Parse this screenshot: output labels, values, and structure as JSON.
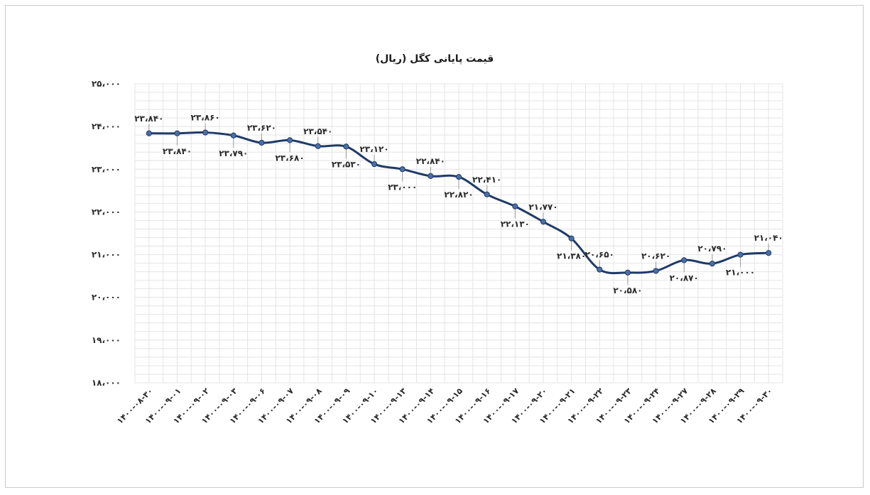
{
  "chart_data": {
    "type": "line",
    "title": "قیمت پایانی کگل (ریال)",
    "xlabel": "",
    "ylabel": "",
    "ylim": [
      18000,
      25000
    ],
    "yticks": [
      {
        "value": 25000,
        "label": "۲۵،۰۰۰"
      },
      {
        "value": 24000,
        "label": "۲۴،۰۰۰"
      },
      {
        "value": 23000,
        "label": "۲۳،۰۰۰"
      },
      {
        "value": 22000,
        "label": "۲۲،۰۰۰"
      },
      {
        "value": 21000,
        "label": "۲۱،۰۰۰"
      },
      {
        "value": 20000,
        "label": "۲۰،۰۰۰"
      },
      {
        "value": 19000,
        "label": "۱۹،۰۰۰"
      },
      {
        "value": 18000,
        "label": "۱۸،۰۰۰"
      }
    ],
    "categories": [
      "۱۴۰۰-۰۸-۳۰",
      "۱۴۰۰-۰۹-۰۱",
      "۱۴۰۰-۰۹-۰۲",
      "۱۴۰۰-۰۹-۰۳",
      "۱۴۰۰-۰۹-۰۶",
      "۱۴۰۰-۰۹-۰۷",
      "۱۴۰۰-۰۹-۰۸",
      "۱۴۰۰-۰۹-۰۹",
      "۱۴۰۰-۰۹-۱۰",
      "۱۴۰۰-۰۹-۱۳",
      "۱۴۰۰-۰۹-۱۴",
      "۱۴۰۰-۰۹-۱۵",
      "۱۴۰۰-۰۹-۱۶",
      "۱۴۰۰-۰۹-۱۷",
      "۱۴۰۰-۰۹-۲۰",
      "۱۴۰۰-۰۹-۲۱",
      "۱۴۰۰-۰۹-۲۲",
      "۱۴۰۰-۰۹-۲۳",
      "۱۴۰۰-۰۹-۲۴",
      "۱۴۰۰-۰۹-۲۷",
      "۱۴۰۰-۰۹-۲۸",
      "۱۴۰۰-۰۹-۲۹",
      "۱۴۰۰-۰۹-۳۰"
    ],
    "values": [
      23840,
      23840,
      23860,
      23790,
      23620,
      23680,
      23540,
      23530,
      23120,
      23000,
      22840,
      22820,
      22410,
      22130,
      21770,
      21380,
      20650,
      20580,
      20620,
      20870,
      20790,
      21000,
      21040
    ],
    "value_labels": [
      "۲۳،۸۴۰",
      "۲۳،۸۴۰",
      "۲۳،۸۶۰",
      "۲۳،۷۹۰",
      "۲۳،۶۲۰",
      "۲۳،۶۸۰",
      "۲۳،۵۴۰",
      "۲۳،۵۳۰",
      "۲۳،۱۲۰",
      "۲۳،۰۰۰",
      "۲۲،۸۴۰",
      "۲۲،۸۲۰",
      "۲۲،۴۱۰",
      "۲۲،۱۳۰",
      "۲۱،۷۷۰",
      "۲۱،۳۸۰",
      "۲۰،۶۵۰",
      "۲۰،۵۸۰",
      "۲۰،۶۲۰",
      "۲۰،۸۷۰",
      "۲۰،۷۹۰",
      "۲۱،۰۰۰",
      "۲۱،۰۴۰"
    ],
    "label_positions": [
      "above",
      "below",
      "above",
      "below",
      "above",
      "below",
      "above",
      "below",
      "above",
      "below",
      "above",
      "below",
      "above",
      "below",
      "above",
      "below",
      "above",
      "below",
      "above",
      "below",
      "above",
      "below",
      "above"
    ],
    "grid": true,
    "line_color": "#1f3a68",
    "marker_color": "#4a6fa5",
    "grid_color": "#e4e4e4"
  }
}
